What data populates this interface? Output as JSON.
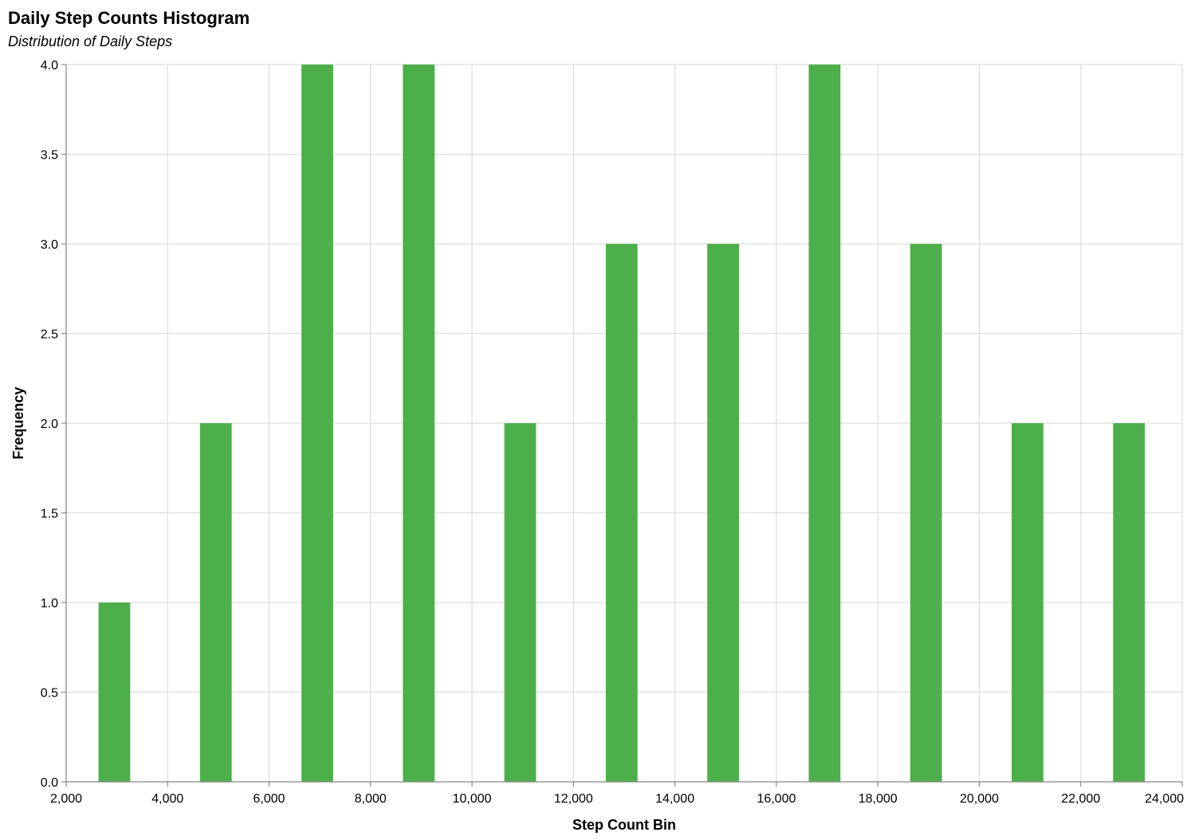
{
  "chart_data": {
    "type": "bar",
    "title": "Daily Step Counts Histogram",
    "subtitle": "Distribution of Daily Steps",
    "xlabel": "Step Count Bin",
    "ylabel": "Frequency",
    "xlim": [
      2000,
      24000
    ],
    "ylim": [
      0,
      4
    ],
    "x_ticks": [
      "2,000",
      "4,000",
      "6,000",
      "8,000",
      "10,000",
      "12,000",
      "14,000",
      "16,000",
      "18,000",
      "20,000",
      "22,000",
      "24,000"
    ],
    "y_ticks": [
      "0.0",
      "0.5",
      "1.0",
      "1.5",
      "2.0",
      "2.5",
      "3.0",
      "3.5",
      "4.0"
    ],
    "grid": true,
    "bar_color": "#4daf4a",
    "bar_width": 625,
    "x": [
      2950,
      4950,
      6950,
      8950,
      10950,
      12950,
      14950,
      16950,
      18950,
      20950,
      22950
    ],
    "values": [
      1,
      2,
      4,
      4,
      2,
      3,
      3,
      4,
      3,
      2,
      2
    ]
  }
}
